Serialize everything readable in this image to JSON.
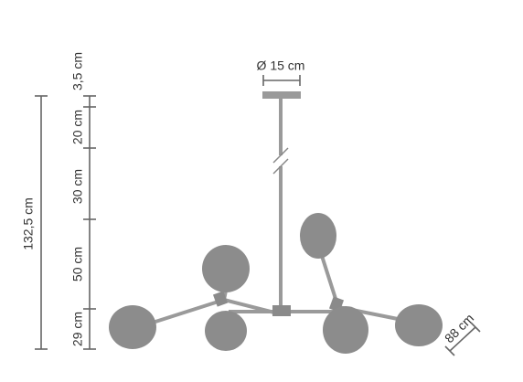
{
  "dimensions": {
    "canopy_diameter": "Ø 15 cm",
    "total_height": "132,5 cm",
    "segments": [
      "3,5 cm",
      "20 cm",
      "30 cm",
      "50 cm",
      "29 cm"
    ],
    "width": "88 cm"
  }
}
